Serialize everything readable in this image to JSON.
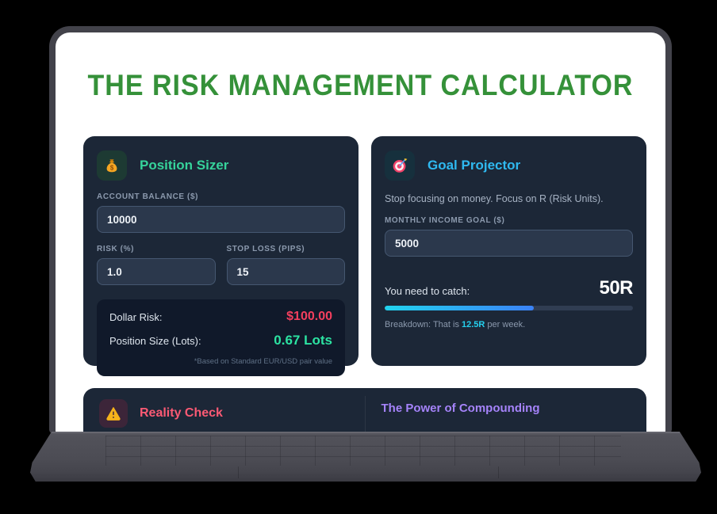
{
  "title": "THE RISK MANAGEMENT CALCULATOR",
  "position_sizer": {
    "title": "Position Sizer",
    "icon": "money-bag-icon",
    "fields": {
      "account_balance": {
        "label": "ACCOUNT BALANCE ($)",
        "value": "10000"
      },
      "risk": {
        "label": "RISK (%)",
        "value": "1.0"
      },
      "stop_loss": {
        "label": "STOP LOSS (PIPS)",
        "value": "15"
      }
    },
    "results": {
      "dollar_risk_label": "Dollar Risk:",
      "dollar_risk_value": "$100.00",
      "position_size_label": "Position Size (Lots):",
      "position_size_value": "0.67 Lots",
      "note": "*Based on Standard EUR/USD pair value"
    }
  },
  "goal_projector": {
    "title": "Goal Projector",
    "icon": "target-icon",
    "subtitle": "Stop focusing on money. Focus on R (Risk Units).",
    "fields": {
      "monthly_goal": {
        "label": "MONTHLY INCOME GOAL ($)",
        "value": "5000"
      }
    },
    "catch_label": "You need to catch:",
    "catch_value": "50R",
    "progress_percent": 60,
    "breakdown_prefix": "Breakdown: That is ",
    "breakdown_value": "12.5R",
    "breakdown_suffix": " per week."
  },
  "reality_check": {
    "title": "Reality Check",
    "icon": "warning-icon"
  },
  "compounding": {
    "title": "The Power of Compounding"
  },
  "colors": {
    "title_green": "#359139",
    "card_bg": "#1c2737",
    "results_bg": "#10192a",
    "input_bg": "#2b384c",
    "accent_emerald": "#36d39b",
    "accent_cyan": "#2fb9f0",
    "accent_red": "#f43f5e",
    "accent_mint": "#2ce3a2",
    "accent_pink": "#fb5a74",
    "accent_purple": "#a583fa",
    "progress_from": "#22d3ee",
    "progress_to": "#3b82f6"
  }
}
